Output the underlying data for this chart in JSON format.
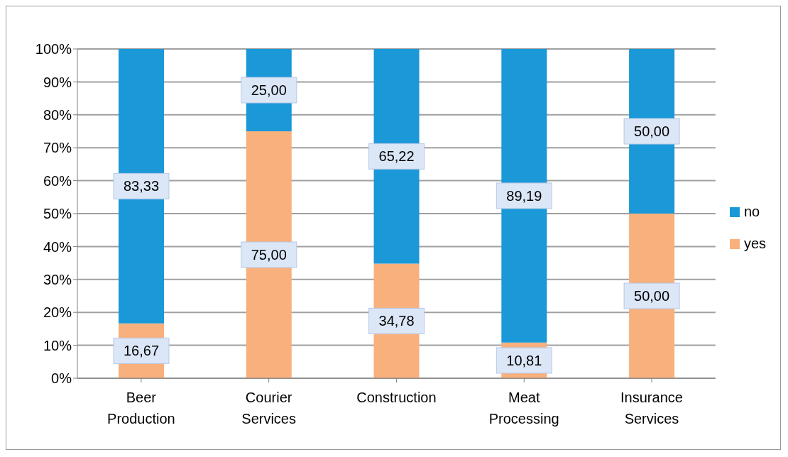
{
  "chart_data": {
    "type": "bar",
    "stacked": true,
    "categories": [
      "Beer Production",
      "Courier Services",
      "Construction",
      "Meat Processing",
      "Insurance Services"
    ],
    "series": [
      {
        "name": "yes",
        "color": "#f8b07c",
        "values": [
          16.67,
          75.0,
          34.78,
          10.81,
          50.0
        ],
        "value_labels": [
          "16,67",
          "75,00",
          "34,78",
          "10,81",
          "50,00"
        ]
      },
      {
        "name": "no",
        "color": "#1a98d8",
        "values": [
          83.33,
          25.0,
          65.22,
          89.19,
          50.0
        ],
        "value_labels": [
          "83,33",
          "25,00",
          "65,22",
          "89,19",
          "50,00"
        ]
      }
    ],
    "ylim": [
      0,
      100
    ],
    "yticks": [
      {
        "value": 0,
        "label": "0%"
      },
      {
        "value": 10,
        "label": "10%"
      },
      {
        "value": 20,
        "label": "20%"
      },
      {
        "value": 30,
        "label": "30%"
      },
      {
        "value": 40,
        "label": "40%"
      },
      {
        "value": 50,
        "label": "50%"
      },
      {
        "value": 60,
        "label": "60%"
      },
      {
        "value": 70,
        "label": "70%"
      },
      {
        "value": 80,
        "label": "80%"
      },
      {
        "value": 90,
        "label": "90%"
      },
      {
        "value": 100,
        "label": "100%"
      }
    ],
    "grid": "y",
    "legend": "right"
  }
}
